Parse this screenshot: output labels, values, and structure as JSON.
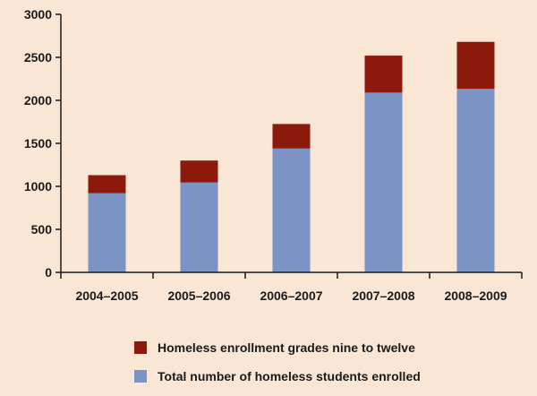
{
  "chart_data": {
    "type": "bar",
    "stacked": true,
    "categories": [
      "2004–2005",
      "2005–2006",
      "2006–2007",
      "2007–2008",
      "2008–2009"
    ],
    "series": [
      {
        "name": "Total number of homeless students enrolled",
        "color": "#7b93c5",
        "values": [
          920,
          1045,
          1440,
          2090,
          2135
        ]
      },
      {
        "name": "Homeless enrollment grades nine to twelve",
        "color": "#8b1a0c",
        "values": [
          210,
          255,
          285,
          430,
          545
        ]
      }
    ],
    "ylim": [
      0,
      3000
    ],
    "yticks": [
      0,
      500,
      1000,
      1500,
      2000,
      2500,
      3000
    ],
    "grid": false,
    "legend_position": "bottom"
  }
}
